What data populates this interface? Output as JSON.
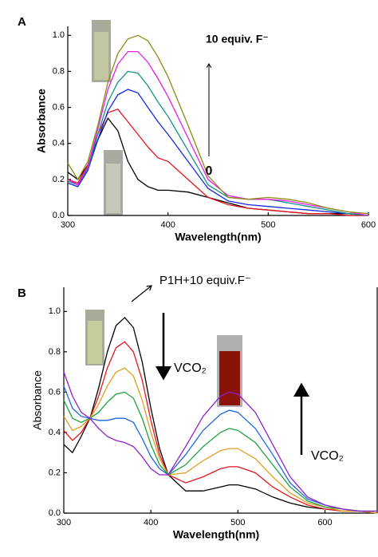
{
  "chart_data": [
    {
      "type": "line",
      "panel_label": "A",
      "x_label": "Wavelength(nm)",
      "y_label": "Absorbance",
      "annotations": [
        "10 equiv. F⁻",
        "0"
      ],
      "x": [
        300,
        310,
        320,
        330,
        340,
        350,
        360,
        370,
        380,
        390,
        400,
        420,
        440,
        460,
        480,
        500,
        520,
        540,
        560,
        580,
        600
      ],
      "xlim": [
        300,
        600
      ],
      "xticks": [
        300,
        400,
        500,
        600
      ],
      "ylim": [
        0,
        1.05
      ],
      "yticks": [
        {
          "value": 0,
          "label": "0.0"
        },
        0.2,
        0.4,
        0.6,
        0.8,
        {
          "value": 1,
          "label": "1.0"
        }
      ],
      "series": [
        {
          "color": "#000000",
          "values": [
            0.24,
            0.2,
            0.28,
            0.42,
            0.54,
            0.47,
            0.3,
            0.2,
            0.16,
            0.14,
            0.14,
            0.13,
            0.1,
            0.07,
            0.04,
            0.03,
            0.02,
            0.01,
            0.01,
            0.01,
            0.0
          ]
        },
        {
          "color": "#e8141e",
          "values": [
            0.2,
            0.18,
            0.28,
            0.45,
            0.57,
            0.59,
            0.52,
            0.45,
            0.38,
            0.32,
            0.3,
            0.2,
            0.1,
            0.06,
            0.04,
            0.03,
            0.02,
            0.01,
            0.01,
            0.0,
            0.0
          ]
        },
        {
          "color": "#1428e0",
          "values": [
            0.18,
            0.16,
            0.25,
            0.42,
            0.58,
            0.67,
            0.7,
            0.68,
            0.6,
            0.52,
            0.45,
            0.3,
            0.15,
            0.08,
            0.06,
            0.05,
            0.04,
            0.03,
            0.02,
            0.01,
            0.0
          ]
        },
        {
          "color": "#178f8a",
          "values": [
            0.19,
            0.17,
            0.26,
            0.45,
            0.63,
            0.74,
            0.8,
            0.79,
            0.72,
            0.63,
            0.55,
            0.36,
            0.17,
            0.1,
            0.09,
            0.09,
            0.07,
            0.05,
            0.03,
            0.01,
            0.0
          ]
        },
        {
          "color": "#e61ee6",
          "values": [
            0.2,
            0.17,
            0.27,
            0.48,
            0.7,
            0.84,
            0.91,
            0.91,
            0.85,
            0.76,
            0.66,
            0.43,
            0.2,
            0.11,
            0.09,
            0.09,
            0.08,
            0.06,
            0.04,
            0.02,
            0.0
          ]
        },
        {
          "color": "#8c8c14",
          "values": [
            0.29,
            0.2,
            0.3,
            0.5,
            0.74,
            0.9,
            0.98,
            1.0,
            0.97,
            0.88,
            0.77,
            0.5,
            0.22,
            0.1,
            0.09,
            0.1,
            0.09,
            0.07,
            0.04,
            0.02,
            0.01
          ]
        }
      ]
    },
    {
      "type": "line",
      "panel_label": "B",
      "x_label": "Wavelength(nm)",
      "y_label": "Absorbance",
      "annotations": [
        "P1H+10 equiv.F⁻",
        "VCO₂",
        "VCO₂"
      ],
      "x": [
        300,
        310,
        320,
        330,
        340,
        350,
        360,
        370,
        380,
        390,
        400,
        410,
        420,
        440,
        460,
        480,
        490,
        500,
        520,
        540,
        560,
        580,
        600,
        620,
        640,
        660
      ],
      "xlim": [
        300,
        660
      ],
      "xticks": [
        300,
        400,
        500,
        600
      ],
      "ylim": [
        0,
        1.12
      ],
      "yticks": [
        {
          "value": 0,
          "label": "0.0"
        },
        0.2,
        0.4,
        0.6,
        0.8,
        {
          "value": 1,
          "label": "1.0"
        }
      ],
      "series": [
        {
          "color": "#000000",
          "values": [
            0.34,
            0.3,
            0.38,
            0.47,
            0.62,
            0.8,
            0.93,
            0.97,
            0.92,
            0.75,
            0.52,
            0.32,
            0.19,
            0.11,
            0.11,
            0.13,
            0.14,
            0.14,
            0.12,
            0.08,
            0.05,
            0.03,
            0.02,
            0.01,
            0.01,
            0.0
          ]
        },
        {
          "color": "#e8141e",
          "values": [
            0.41,
            0.36,
            0.4,
            0.47,
            0.58,
            0.72,
            0.82,
            0.85,
            0.8,
            0.66,
            0.46,
            0.29,
            0.19,
            0.15,
            0.18,
            0.22,
            0.23,
            0.23,
            0.2,
            0.13,
            0.08,
            0.04,
            0.02,
            0.01,
            0.01,
            0.0
          ]
        },
        {
          "color": "#e0a020",
          "values": [
            0.48,
            0.41,
            0.43,
            0.47,
            0.54,
            0.63,
            0.7,
            0.72,
            0.68,
            0.56,
            0.4,
            0.27,
            0.19,
            0.2,
            0.26,
            0.31,
            0.32,
            0.32,
            0.27,
            0.18,
            0.1,
            0.05,
            0.03,
            0.01,
            0.01,
            0.0
          ]
        },
        {
          "color": "#20a040",
          "values": [
            0.56,
            0.47,
            0.45,
            0.47,
            0.5,
            0.55,
            0.59,
            0.6,
            0.57,
            0.47,
            0.34,
            0.24,
            0.19,
            0.24,
            0.33,
            0.4,
            0.42,
            0.41,
            0.35,
            0.24,
            0.13,
            0.06,
            0.03,
            0.02,
            0.01,
            0.01
          ]
        },
        {
          "color": "#1e64e6",
          "values": [
            0.63,
            0.52,
            0.48,
            0.47,
            0.46,
            0.46,
            0.47,
            0.47,
            0.45,
            0.37,
            0.28,
            0.22,
            0.19,
            0.29,
            0.41,
            0.49,
            0.51,
            0.5,
            0.42,
            0.29,
            0.15,
            0.07,
            0.04,
            0.02,
            0.01,
            0.01
          ]
        },
        {
          "color": "#9020c8",
          "values": [
            0.7,
            0.58,
            0.5,
            0.47,
            0.42,
            0.38,
            0.36,
            0.35,
            0.33,
            0.28,
            0.22,
            0.19,
            0.19,
            0.33,
            0.48,
            0.58,
            0.6,
            0.59,
            0.5,
            0.34,
            0.18,
            0.08,
            0.04,
            0.02,
            0.01,
            0.01
          ]
        }
      ]
    }
  ]
}
